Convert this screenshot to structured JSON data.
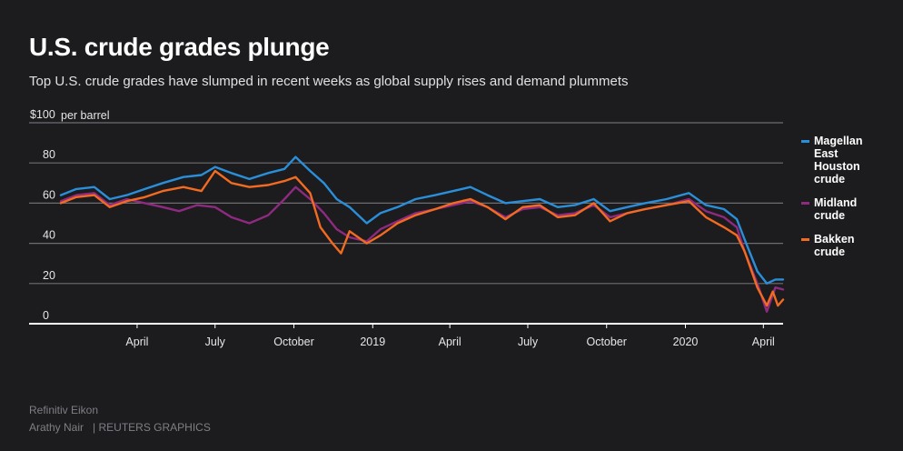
{
  "header": {
    "title": "U.S. crude grades plunge",
    "subtitle": "Top U.S. crude grades have slumped in recent weeks as global supply rises and demand plummets"
  },
  "footer": {
    "source": "Refinitiv Eikon",
    "author": "Arathy Nair",
    "agency": "| REUTERS GRAPHICS"
  },
  "chart_data": {
    "type": "line",
    "title": "U.S. crude grades plunge",
    "subtitle": "Top U.S. crude grades have slumped in recent weeks as global supply rises and demand plummets",
    "ylabel": "per barrel",
    "yunit": "$",
    "ylim": [
      0,
      100
    ],
    "yticks": [
      {
        "value": 100,
        "label": "$100"
      },
      {
        "value": 80,
        "label": "80"
      },
      {
        "value": 60,
        "label": "60"
      },
      {
        "value": 40,
        "label": "40"
      },
      {
        "value": 20,
        "label": "20"
      },
      {
        "value": 0,
        "label": "0"
      }
    ],
    "xlim": [
      "2018-01-02",
      "2020-04-24"
    ],
    "xticks": [
      {
        "date": "2018-04-01",
        "label": "April"
      },
      {
        "date": "2018-07-01",
        "label": "July"
      },
      {
        "date": "2018-10-01",
        "label": "October"
      },
      {
        "date": "2019-01-01",
        "label": "2019"
      },
      {
        "date": "2019-04-01",
        "label": "April"
      },
      {
        "date": "2019-07-01",
        "label": "July"
      },
      {
        "date": "2019-10-01",
        "label": "October"
      },
      {
        "date": "2020-01-01",
        "label": "2020"
      },
      {
        "date": "2020-04-01",
        "label": "April"
      }
    ],
    "grid": true,
    "legend_position": "right",
    "series": [
      {
        "name": "Magellan East Houston crude",
        "color": "#2a8fd8",
        "points": [
          [
            "2018-01-02",
            64
          ],
          [
            "2018-01-20",
            67
          ],
          [
            "2018-02-10",
            68
          ],
          [
            "2018-02-28",
            62
          ],
          [
            "2018-03-20",
            64
          ],
          [
            "2018-04-10",
            67
          ],
          [
            "2018-05-01",
            70
          ],
          [
            "2018-05-25",
            73
          ],
          [
            "2018-06-15",
            74
          ],
          [
            "2018-07-01",
            78
          ],
          [
            "2018-07-20",
            75
          ],
          [
            "2018-08-10",
            72
          ],
          [
            "2018-09-01",
            75
          ],
          [
            "2018-09-20",
            77
          ],
          [
            "2018-10-03",
            83
          ],
          [
            "2018-10-20",
            76
          ],
          [
            "2018-11-05",
            70
          ],
          [
            "2018-11-20",
            62
          ],
          [
            "2018-12-05",
            58
          ],
          [
            "2018-12-25",
            50
          ],
          [
            "2019-01-10",
            55
          ],
          [
            "2019-01-30",
            58
          ],
          [
            "2019-02-20",
            62
          ],
          [
            "2019-03-15",
            64
          ],
          [
            "2019-04-05",
            66
          ],
          [
            "2019-04-25",
            68
          ],
          [
            "2019-05-15",
            64
          ],
          [
            "2019-06-05",
            60
          ],
          [
            "2019-06-25",
            61
          ],
          [
            "2019-07-15",
            62
          ],
          [
            "2019-08-05",
            58
          ],
          [
            "2019-08-25",
            59
          ],
          [
            "2019-09-16",
            62
          ],
          [
            "2019-10-05",
            56
          ],
          [
            "2019-10-25",
            58
          ],
          [
            "2019-11-15",
            60
          ],
          [
            "2019-12-10",
            62
          ],
          [
            "2020-01-05",
            65
          ],
          [
            "2020-01-25",
            59
          ],
          [
            "2020-02-15",
            57
          ],
          [
            "2020-03-01",
            52
          ],
          [
            "2020-03-10",
            42
          ],
          [
            "2020-03-25",
            26
          ],
          [
            "2020-04-05",
            20
          ],
          [
            "2020-04-15",
            22
          ],
          [
            "2020-04-24",
            22
          ]
        ]
      },
      {
        "name": "Midland crude",
        "color": "#8e2a80",
        "points": [
          [
            "2018-01-02",
            61
          ],
          [
            "2018-01-20",
            64
          ],
          [
            "2018-02-10",
            65
          ],
          [
            "2018-02-28",
            59
          ],
          [
            "2018-03-20",
            62
          ],
          [
            "2018-04-10",
            60
          ],
          [
            "2018-05-01",
            58
          ],
          [
            "2018-05-20",
            56
          ],
          [
            "2018-06-10",
            59
          ],
          [
            "2018-07-01",
            58
          ],
          [
            "2018-07-20",
            53
          ],
          [
            "2018-08-10",
            50
          ],
          [
            "2018-09-01",
            54
          ],
          [
            "2018-09-20",
            62
          ],
          [
            "2018-10-03",
            68
          ],
          [
            "2018-10-20",
            62
          ],
          [
            "2018-11-05",
            55
          ],
          [
            "2018-11-20",
            47
          ],
          [
            "2018-12-05",
            43
          ],
          [
            "2018-12-25",
            41
          ],
          [
            "2019-01-10",
            47
          ],
          [
            "2019-01-30",
            51
          ],
          [
            "2019-02-20",
            55
          ],
          [
            "2019-03-15",
            57
          ],
          [
            "2019-04-05",
            59
          ],
          [
            "2019-04-25",
            61
          ],
          [
            "2019-05-15",
            58
          ],
          [
            "2019-06-05",
            53
          ],
          [
            "2019-06-25",
            57
          ],
          [
            "2019-07-15",
            58
          ],
          [
            "2019-08-05",
            54
          ],
          [
            "2019-08-25",
            55
          ],
          [
            "2019-09-16",
            59
          ],
          [
            "2019-10-05",
            53
          ],
          [
            "2019-10-25",
            55
          ],
          [
            "2019-11-15",
            57
          ],
          [
            "2019-12-10",
            59
          ],
          [
            "2020-01-05",
            62
          ],
          [
            "2020-01-25",
            56
          ],
          [
            "2020-02-15",
            53
          ],
          [
            "2020-03-01",
            48
          ],
          [
            "2020-03-10",
            36
          ],
          [
            "2020-03-25",
            20
          ],
          [
            "2020-04-05",
            6
          ],
          [
            "2020-04-15",
            18
          ],
          [
            "2020-04-24",
            17
          ]
        ]
      },
      {
        "name": "Bakken crude",
        "color": "#f26b21",
        "points": [
          [
            "2018-01-02",
            60
          ],
          [
            "2018-01-20",
            63
          ],
          [
            "2018-02-10",
            64
          ],
          [
            "2018-02-28",
            58
          ],
          [
            "2018-03-20",
            61
          ],
          [
            "2018-04-10",
            63
          ],
          [
            "2018-05-01",
            66
          ],
          [
            "2018-05-25",
            68
          ],
          [
            "2018-06-15",
            66
          ],
          [
            "2018-07-01",
            76
          ],
          [
            "2018-07-20",
            70
          ],
          [
            "2018-08-10",
            68
          ],
          [
            "2018-09-01",
            69
          ],
          [
            "2018-09-20",
            71
          ],
          [
            "2018-10-03",
            73
          ],
          [
            "2018-10-20",
            65
          ],
          [
            "2018-11-01",
            48
          ],
          [
            "2018-11-15",
            40
          ],
          [
            "2018-11-25",
            35
          ],
          [
            "2018-12-05",
            46
          ],
          [
            "2018-12-25",
            40
          ],
          [
            "2019-01-10",
            44
          ],
          [
            "2019-01-30",
            50
          ],
          [
            "2019-02-20",
            54
          ],
          [
            "2019-03-15",
            57
          ],
          [
            "2019-04-05",
            60
          ],
          [
            "2019-04-25",
            62
          ],
          [
            "2019-05-15",
            58
          ],
          [
            "2019-06-05",
            52
          ],
          [
            "2019-06-25",
            58
          ],
          [
            "2019-07-15",
            59
          ],
          [
            "2019-08-05",
            53
          ],
          [
            "2019-08-25",
            54
          ],
          [
            "2019-09-16",
            60
          ],
          [
            "2019-10-05",
            51
          ],
          [
            "2019-10-25",
            55
          ],
          [
            "2019-11-15",
            57
          ],
          [
            "2019-12-10",
            59
          ],
          [
            "2020-01-05",
            61
          ],
          [
            "2020-01-25",
            53
          ],
          [
            "2020-02-15",
            48
          ],
          [
            "2020-03-01",
            44
          ],
          [
            "2020-03-10",
            36
          ],
          [
            "2020-03-25",
            18
          ],
          [
            "2020-04-05",
            9
          ],
          [
            "2020-04-12",
            16
          ],
          [
            "2020-04-18",
            9
          ],
          [
            "2020-04-24",
            12
          ]
        ]
      }
    ]
  }
}
